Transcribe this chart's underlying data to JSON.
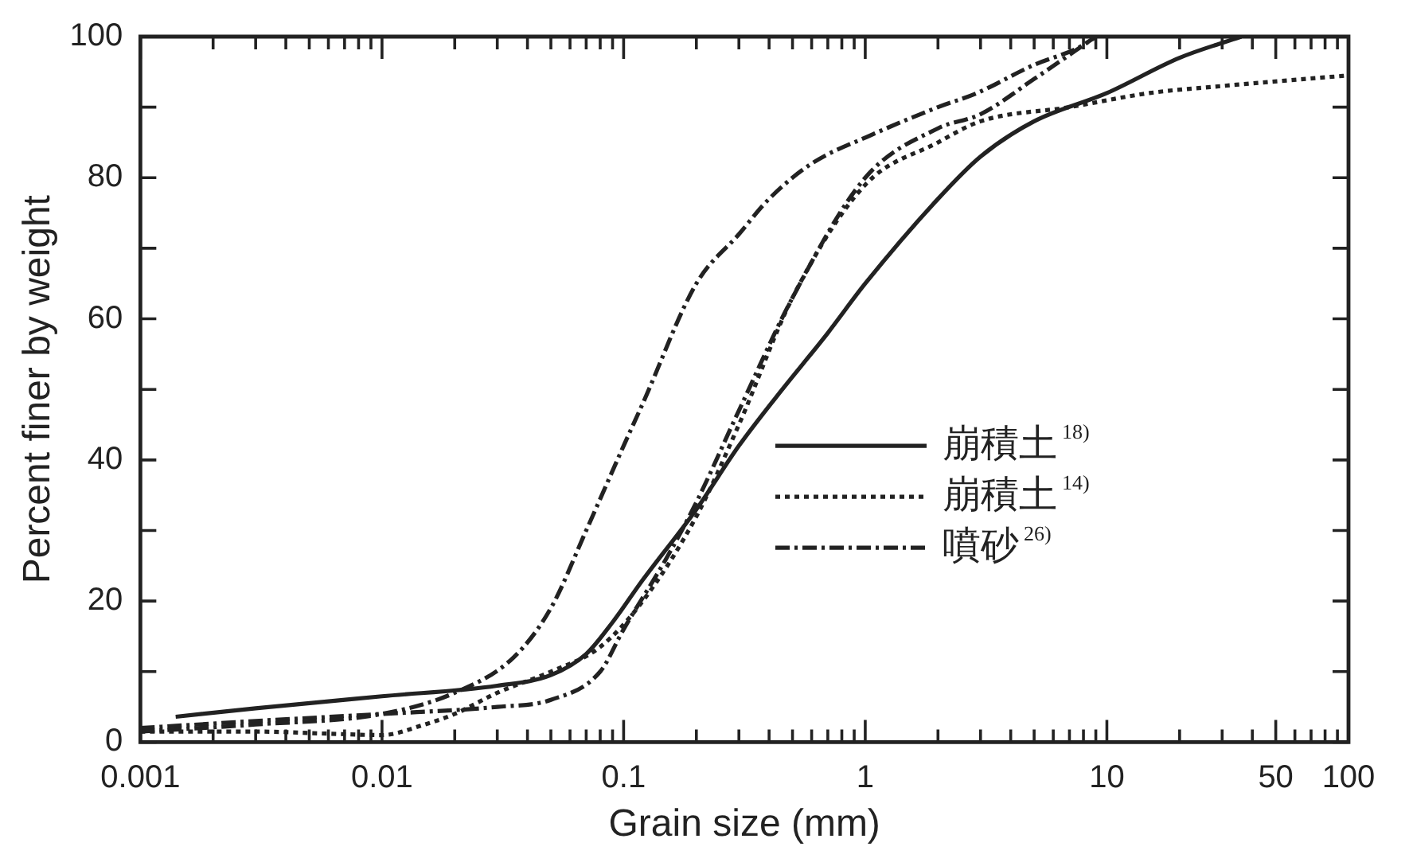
{
  "chart_data": {
    "type": "line",
    "xlabel": "Grain size (mm)",
    "ylabel": "Percent finer by weight",
    "log": "x",
    "xlim": [
      0.001,
      100
    ],
    "ylim": [
      0,
      100
    ],
    "xticks": [
      {
        "value": 0.001,
        "label": "0.001"
      },
      {
        "value": 0.002,
        "label": null
      },
      {
        "value": 0.003,
        "label": null
      },
      {
        "value": 0.004,
        "label": null
      },
      {
        "value": 0.005,
        "label": null
      },
      {
        "value": 0.006,
        "label": null
      },
      {
        "value": 0.007,
        "label": null
      },
      {
        "value": 0.008,
        "label": null
      },
      {
        "value": 0.009,
        "label": null
      },
      {
        "value": 0.01,
        "label": "0.01"
      },
      {
        "value": 0.02,
        "label": null
      },
      {
        "value": 0.03,
        "label": null
      },
      {
        "value": 0.04,
        "label": null
      },
      {
        "value": 0.05,
        "label": null
      },
      {
        "value": 0.06,
        "label": null
      },
      {
        "value": 0.07,
        "label": null
      },
      {
        "value": 0.08,
        "label": null
      },
      {
        "value": 0.09,
        "label": null
      },
      {
        "value": 0.1,
        "label": "0.1"
      },
      {
        "value": 0.2,
        "label": null
      },
      {
        "value": 0.3,
        "label": null
      },
      {
        "value": 0.4,
        "label": null
      },
      {
        "value": 0.5,
        "label": null
      },
      {
        "value": 0.6,
        "label": null
      },
      {
        "value": 0.7,
        "label": null
      },
      {
        "value": 0.8,
        "label": null
      },
      {
        "value": 0.9,
        "label": null
      },
      {
        "value": 1,
        "label": "1"
      },
      {
        "value": 2,
        "label": null
      },
      {
        "value": 3,
        "label": null
      },
      {
        "value": 4,
        "label": null
      },
      {
        "value": 5,
        "label": null
      },
      {
        "value": 6,
        "label": null
      },
      {
        "value": 7,
        "label": null
      },
      {
        "value": 8,
        "label": null
      },
      {
        "value": 9,
        "label": null
      },
      {
        "value": 10,
        "label": "10"
      },
      {
        "value": 20,
        "label": null
      },
      {
        "value": 30,
        "label": null
      },
      {
        "value": 40,
        "label": null
      },
      {
        "value": 50,
        "label": "50"
      },
      {
        "value": 60,
        "label": null
      },
      {
        "value": 70,
        "label": null
      },
      {
        "value": 80,
        "label": null
      },
      {
        "value": 90,
        "label": null
      },
      {
        "value": 100,
        "label": "100"
      }
    ],
    "yticks": [
      0,
      {
        "value": 10,
        "label": null
      },
      20,
      {
        "value": 30,
        "label": null
      },
      40,
      {
        "value": 50,
        "label": null
      },
      60,
      {
        "value": 70,
        "label": null
      },
      80,
      {
        "value": 90,
        "label": null
      },
      100
    ],
    "grid": false,
    "legend": "right",
    "marker": "none",
    "series": [
      {
        "name": "崩積土$^{18)}$",
        "color": "#222222",
        "line_style": "solid",
        "x": [
          0.0014,
          0.003,
          0.01,
          0.03,
          0.05,
          0.07,
          0.09,
          0.12,
          0.2,
          0.3,
          0.43,
          0.7,
          1,
          2,
          3,
          5,
          10,
          20,
          36
        ],
        "values": [
          3.6,
          4.8,
          6.5,
          8,
          9.5,
          12.5,
          17,
          23,
          33,
          42,
          49,
          58,
          65,
          77,
          83,
          88,
          92,
          97,
          100
        ]
      },
      {
        "name": "崩積土$^{14)}$",
        "color": "#222222",
        "line_style": "dotted",
        "x": [
          0.001,
          0.003,
          0.006,
          0.01,
          0.015,
          0.02,
          0.03,
          0.05,
          0.08,
          0.12,
          0.2,
          0.3,
          0.5,
          1,
          2,
          3,
          7,
          15,
          30,
          100
        ],
        "values": [
          1.5,
          1.5,
          1.2,
          1,
          2.5,
          4,
          7,
          10,
          13.5,
          20,
          32,
          45,
          63,
          79,
          85,
          88,
          90,
          92,
          93,
          94.5
        ]
      },
      {
        "name": "噴砂$^{26)}$",
        "color": "#222222",
        "line_style": "dashed",
        "x": [
          0.001,
          0.003,
          0.01,
          0.02,
          0.035,
          0.05,
          0.07,
          0.1,
          0.12,
          0.2,
          0.3,
          0.4,
          0.6,
          1.05,
          2,
          2.9,
          5,
          7.7,
          9
        ],
        "values": [
          1.5,
          2.5,
          4,
          7,
          12,
          19,
          30,
          42,
          48,
          65,
          72,
          77,
          82,
          86,
          90,
          92,
          96,
          98.5,
          100
        ]
      },
      {
        "color": "#222222",
        "line_style": "dashed",
        "x": [
          0.001,
          0.003,
          0.01,
          0.03,
          0.05,
          0.08,
          0.1,
          0.15,
          0.2,
          0.3,
          0.5,
          1,
          2,
          3,
          5,
          9
        ],
        "values": [
          2,
          3,
          4,
          5,
          6,
          10,
          16,
          26,
          34,
          47,
          63,
          80,
          87,
          89,
          94,
          100
        ]
      }
    ]
  }
}
